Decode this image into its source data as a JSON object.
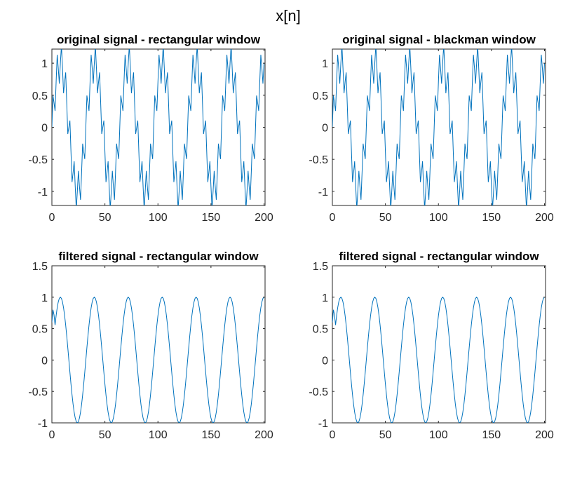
{
  "figure_title": "x[n]",
  "colors": {
    "line": "#0072BD",
    "axes": "#262626"
  },
  "chart_data": [
    {
      "type": "line",
      "title": "original signal - rectangular window",
      "xlabel": "",
      "ylabel": "",
      "xlim": [
        0,
        201
      ],
      "ylim": [
        -1.22,
        1.22
      ],
      "xticks": [
        0,
        50,
        100,
        150,
        200
      ],
      "xtick_labels": [
        "0",
        "50",
        "100",
        "150",
        "200"
      ],
      "yticks": [
        -1,
        -0.5,
        0,
        0.5,
        1
      ],
      "ytick_labels": [
        "-1",
        "-0.5",
        "0",
        "0.5",
        "1"
      ],
      "grid": false,
      "series": [
        {
          "signal": "sin(2*pi*n/32) + 0.3*sin(2*pi*n/4)",
          "n_range": [
            0,
            200
          ]
        }
      ]
    },
    {
      "type": "line",
      "title": "original signal - blackman window",
      "xlabel": "",
      "ylabel": "",
      "xlim": [
        0,
        201
      ],
      "ylim": [
        -1.22,
        1.22
      ],
      "xticks": [
        0,
        50,
        100,
        150,
        200
      ],
      "xtick_labels": [
        "0",
        "50",
        "100",
        "150",
        "200"
      ],
      "yticks": [
        -1,
        -0.5,
        0,
        0.5,
        1
      ],
      "ytick_labels": [
        "-1",
        "-0.5",
        "0",
        "0.5",
        "1"
      ],
      "grid": false,
      "series": [
        {
          "signal": "sin(2*pi*n/32) + 0.3*sin(2*pi*n/4)",
          "n_range": [
            0,
            200
          ]
        }
      ]
    },
    {
      "type": "line",
      "title": "filtered signal - rectangular window",
      "xlabel": "",
      "ylabel": "",
      "xlim": [
        0,
        201
      ],
      "ylim": [
        -1,
        1.5
      ],
      "xticks": [
        0,
        50,
        100,
        150,
        200
      ],
      "xtick_labels": [
        "0",
        "50",
        "100",
        "150",
        "200"
      ],
      "yticks": [
        -1,
        -0.5,
        0,
        0.5,
        1,
        1.5
      ],
      "ytick_labels": [
        "-1",
        "-0.5",
        "0",
        "0.5",
        "1",
        "1.5"
      ],
      "grid": false,
      "series": [
        {
          "signal": "sin(2*pi*n/32)",
          "n_range": [
            0,
            200
          ],
          "startup": [
            0.6,
            0.8,
            0.72
          ]
        }
      ]
    },
    {
      "type": "line",
      "title": "filtered signal - rectangular window",
      "xlabel": "",
      "ylabel": "",
      "xlim": [
        0,
        201
      ],
      "ylim": [
        -1,
        1.5
      ],
      "xticks": [
        0,
        50,
        100,
        150,
        200
      ],
      "xtick_labels": [
        "0",
        "50",
        "100",
        "150",
        "200"
      ],
      "yticks": [
        -1,
        -0.5,
        0,
        0.5,
        1,
        1.5
      ],
      "ytick_labels": [
        "-1",
        "-0.5",
        "0",
        "0.5",
        "1",
        "1.5"
      ],
      "grid": false,
      "series": [
        {
          "signal": "sin(2*pi*n/32)",
          "n_range": [
            0,
            200
          ],
          "startup": [
            0.6,
            0.8,
            0.72
          ]
        }
      ]
    }
  ]
}
